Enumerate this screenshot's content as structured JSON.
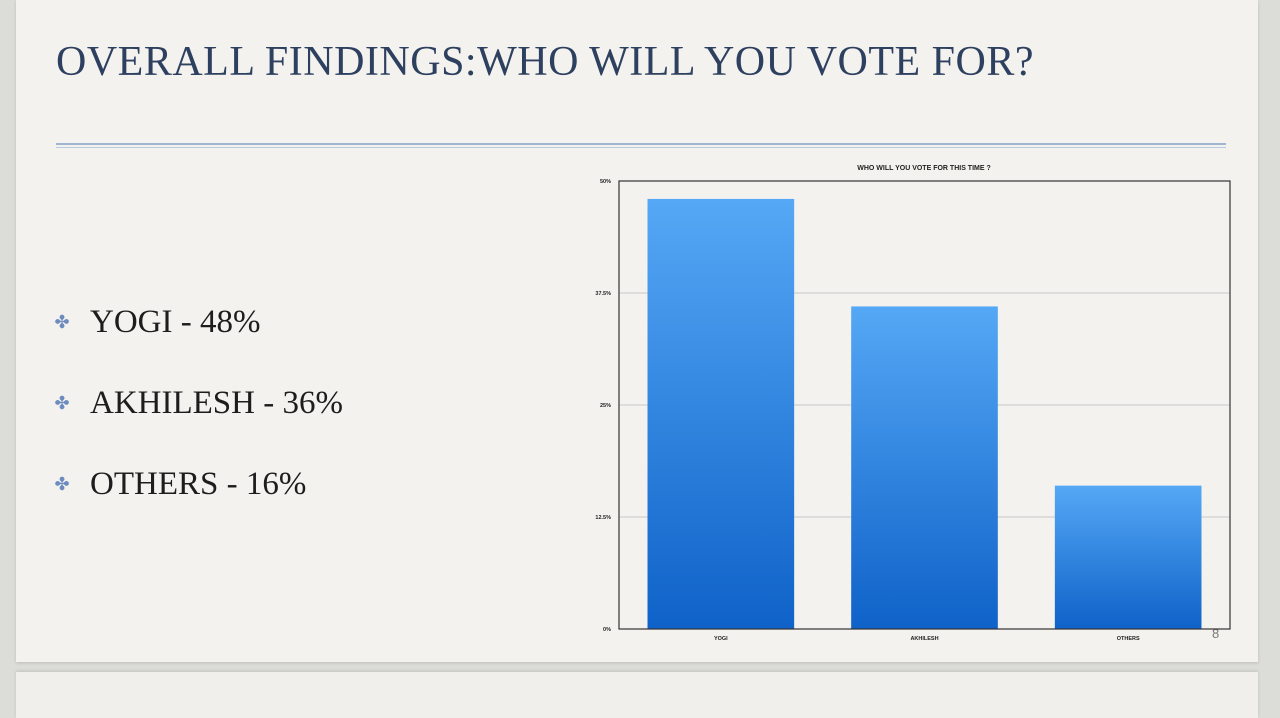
{
  "slide": {
    "title": "OVERALL FINDINGS:WHO WILL YOU VOTE FOR?",
    "bullets": [
      "YOGI - 48%",
      "AKHILESH - 36%",
      "OTHERS - 16%"
    ],
    "page_number": "8"
  },
  "colors": {
    "bar_top": "#55a8f5",
    "bar_bottom": "#0f62c8",
    "title": "#2e4060",
    "bullet_icon": "#6c8cc0"
  },
  "chart_data": {
    "type": "bar",
    "title": "WHO WILL YOU VOTE FOR THIS TIME ?",
    "categories": [
      "YOGI",
      "AKHILESH",
      "OTHERS"
    ],
    "values": [
      48,
      36,
      16
    ],
    "ylim": [
      0,
      50
    ],
    "yticks": [
      0,
      12.5,
      25,
      37.5,
      50
    ],
    "ytick_labels": [
      "0%",
      "12.5%",
      "25%",
      "37.5%",
      "50%"
    ],
    "xlabel": "",
    "ylabel": "",
    "grid": true,
    "legend": "none"
  }
}
